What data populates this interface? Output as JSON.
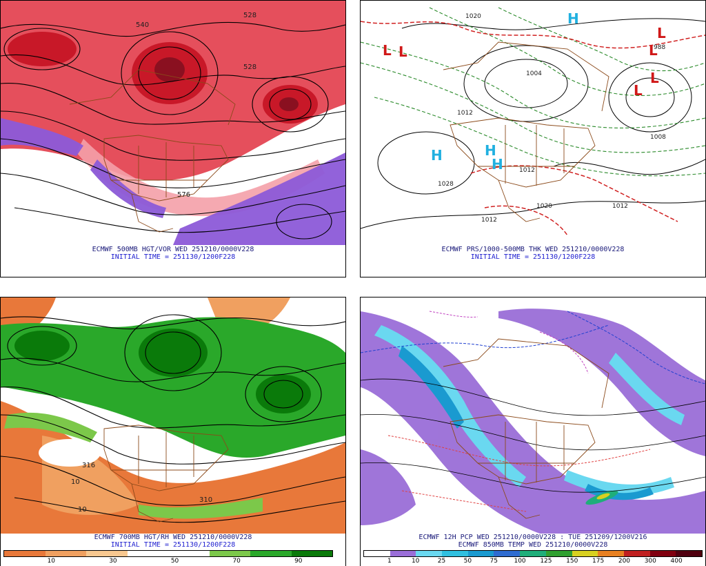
{
  "panels": [
    {
      "id": "p1",
      "caption_line1": "ECMWF 500MB HGT/VOR WED 251210/0000V228",
      "caption_line2": "INITIAL TIME = 251130/1200F228",
      "contour_labels": [
        "540",
        "528",
        "528",
        "576"
      ]
    },
    {
      "id": "p2",
      "caption_line1": "ECMWF PRS/1000-500MB THK WED 251210/0000V228",
      "caption_line2": "INITIAL TIME = 251130/1200F228",
      "contour_labels": [
        "1020",
        "1004",
        "1012",
        "1028",
        "1012",
        "1020",
        "1012",
        "1008",
        "988",
        "1012"
      ],
      "pressure_centers": [
        "L",
        "L",
        "L",
        "L",
        "L",
        "L",
        "H",
        "H",
        "H",
        "H"
      ]
    },
    {
      "id": "p3",
      "caption_line1": "ECMWF 700MB HGT/RH WED 251210/0000V228",
      "caption_line2": "INITIAL TIME = 251130/1200F228",
      "contour_labels": [
        "316",
        "310",
        "10",
        "10"
      ],
      "colorbar": {
        "ticks": [
          "10",
          "30",
          "50",
          "70",
          "90"
        ],
        "colors": [
          "#e8783a",
          "#f0a060",
          "#f8c890",
          "#ffffff",
          "#ffffff",
          "#7cc84a",
          "#2aa82a",
          "#0a7a0a"
        ]
      }
    },
    {
      "id": "p4",
      "caption_line1": "ECMWF 12H PCP WED 251210/0000V228 : TUE 251209/1200V216",
      "caption_line2": "ECMWF 850MB TEMP WED 251210/0000V228",
      "colorbar": {
        "ticks": [
          "1",
          "10",
          "25",
          "50",
          "75",
          "100",
          "125",
          "150",
          "175",
          "200",
          "300",
          "400"
        ],
        "colors": [
          "#ffffff",
          "#9a6ed8",
          "#6ad8f0",
          "#30c0e0",
          "#1a9ad0",
          "#2f6cd0",
          "#1fae7a",
          "#30a030",
          "#d8d020",
          "#e88020",
          "#c02020",
          "#800010",
          "#500010"
        ]
      }
    }
  ]
}
